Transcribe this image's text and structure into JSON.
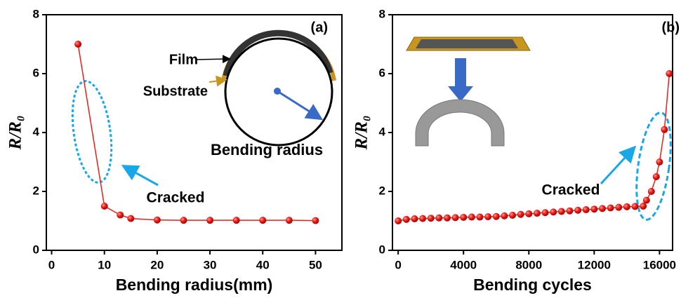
{
  "chart_data": [
    {
      "type": "line",
      "xlabel": "Bending radius(mm)",
      "ylabel": "R/R₀",
      "x": [
        5,
        10,
        13,
        15,
        20,
        25,
        30,
        35,
        40,
        45,
        50
      ],
      "series": [
        {
          "color": "#e8201a",
          "values": [
            7,
            1.5,
            1.2,
            1.08,
            1.03,
            1.02,
            1.02,
            1.02,
            1.02,
            1.02,
            1.01
          ]
        }
      ],
      "xlim": [
        -1,
        55
      ],
      "xticks": [
        0,
        10,
        20,
        30,
        40,
        50
      ],
      "ylim": [
        0,
        8
      ],
      "yticks": [
        0,
        2,
        4,
        6,
        8
      ],
      "annotations": [
        "(a)",
        "Film",
        "Substrate",
        "Bending radius",
        "Cracked"
      ]
    },
    {
      "type": "line",
      "xlabel": "Bending cycles",
      "ylabel": "R/R₀",
      "x": [
        0,
        500,
        1000,
        1500,
        2000,
        2500,
        3000,
        3500,
        4000,
        4500,
        5000,
        5500,
        6000,
        6500,
        7000,
        7500,
        8000,
        8500,
        9000,
        9500,
        10000,
        10500,
        11000,
        11500,
        12000,
        12500,
        13000,
        13500,
        14000,
        14500,
        15000,
        15200,
        15500,
        15800,
        16000,
        16300,
        16600
      ],
      "series": [
        {
          "color": "#e8201a",
          "values": [
            1.0,
            1.05,
            1.07,
            1.08,
            1.09,
            1.1,
            1.1,
            1.11,
            1.12,
            1.13,
            1.13,
            1.14,
            1.15,
            1.17,
            1.19,
            1.22,
            1.24,
            1.26,
            1.28,
            1.3,
            1.32,
            1.34,
            1.36,
            1.38,
            1.4,
            1.42,
            1.44,
            1.46,
            1.48,
            1.49,
            1.5,
            1.7,
            2.0,
            2.5,
            3.0,
            4.1,
            6.0
          ]
        }
      ],
      "xlim": [
        -350,
        16800
      ],
      "xticks": [
        0,
        4000,
        8000,
        12000,
        16000
      ],
      "ylim": [
        0,
        8
      ],
      "yticks": [
        0,
        2,
        4,
        6,
        8
      ],
      "annotations": [
        "(b)",
        "Cracked"
      ]
    }
  ]
}
